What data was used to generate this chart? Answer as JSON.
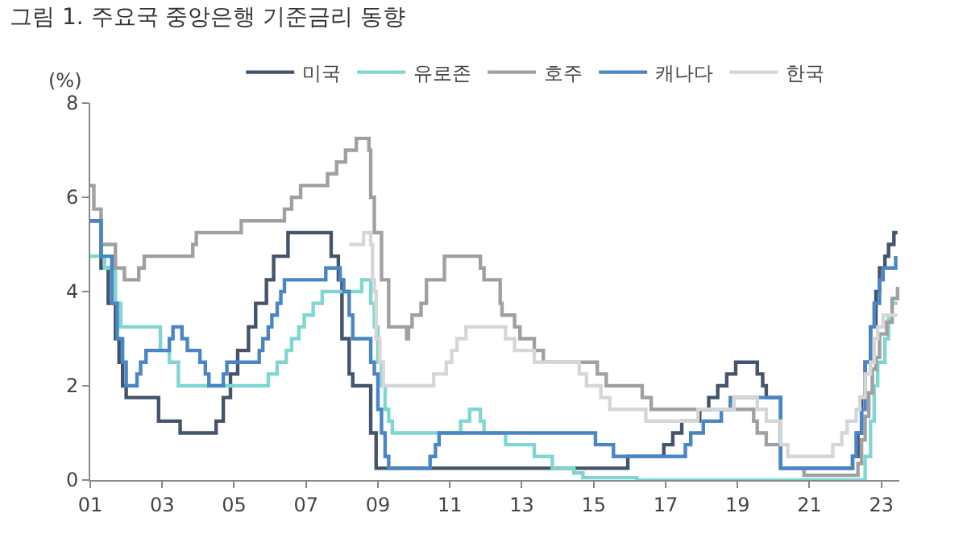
{
  "chart_data": {
    "type": "step",
    "title": "그림 1. 주요국 중앙은행 기준금리 동향",
    "ylabel": "(%)",
    "xlim": [
      2001,
      2023.5
    ],
    "xticks": [
      {
        "value": 2001,
        "label": "01"
      },
      {
        "value": 2003,
        "label": "03"
      },
      {
        "value": 2005,
        "label": "05"
      },
      {
        "value": 2007,
        "label": "07"
      },
      {
        "value": 2009,
        "label": "09"
      },
      {
        "value": 2011,
        "label": "11"
      },
      {
        "value": 2013,
        "label": "13"
      },
      {
        "value": 2015,
        "label": "15"
      },
      {
        "value": 2017,
        "label": "17"
      },
      {
        "value": 2019,
        "label": "19"
      },
      {
        "value": 2021,
        "label": "21"
      },
      {
        "value": 2023,
        "label": "23"
      }
    ],
    "ylim": [
      0,
      8
    ],
    "yticks": [
      0,
      2,
      4,
      6,
      8
    ],
    "grid": false,
    "legend": "top",
    "marker": "none",
    "line_style": "solid",
    "series": [
      {
        "name": "미국",
        "color": "#44546a",
        "x": [
          2001,
          2001.3,
          2001.5,
          2001.7,
          2001.8,
          2001.9,
          2002,
          2002.9,
          2003.5,
          2004.5,
          2004.7,
          2004.9,
          2005.1,
          2005.4,
          2005.6,
          2005.9,
          2006.1,
          2006.5,
          2007.7,
          2007.9,
          2008,
          2008.2,
          2008.3,
          2008.8,
          2008.95,
          2015.95,
          2016.95,
          2017.2,
          2017.45,
          2017.95,
          2018.2,
          2018.45,
          2018.7,
          2018.95,
          2019.55,
          2019.7,
          2019.8,
          2020.2,
          2022.2,
          2022.35,
          2022.45,
          2022.55,
          2022.7,
          2022.85,
          2022.95,
          2023.1,
          2023.2,
          2023.35,
          2023.45
        ],
        "values": [
          5.5,
          4.5,
          3.75,
          3,
          2.5,
          2,
          1.75,
          1.25,
          1,
          1.25,
          1.75,
          2.25,
          2.75,
          3.25,
          3.75,
          4.25,
          4.75,
          5.25,
          4.75,
          4.25,
          3,
          2.25,
          2,
          1,
          0.25,
          0.5,
          0.75,
          1,
          1.25,
          1.5,
          1.75,
          2,
          2.25,
          2.5,
          2.25,
          2,
          1.75,
          0.25,
          0.5,
          1,
          1.75,
          2.5,
          3.25,
          4,
          4.5,
          4.75,
          5,
          5.25,
          5.25
        ]
      },
      {
        "name": "유로존",
        "color": "#7fd6d2",
        "x": [
          2001,
          2001.4,
          2001.7,
          2001.85,
          2002.95,
          2003.2,
          2003.45,
          2005.95,
          2006.2,
          2006.45,
          2006.6,
          2006.8,
          2006.95,
          2007.2,
          2007.45,
          2008.55,
          2008.8,
          2008.9,
          2009,
          2009.1,
          2009.2,
          2009.3,
          2009.4,
          2011.3,
          2011.55,
          2011.85,
          2011.95,
          2012.55,
          2013.35,
          2013.85,
          2014.45,
          2014.7,
          2016.2,
          2022.55,
          2022.7,
          2022.8,
          2022.9,
          2023.1,
          2023.2,
          2023.3,
          2023.45
        ],
        "values": [
          4.75,
          4.5,
          3.75,
          3.25,
          2.75,
          2.5,
          2,
          2.25,
          2.5,
          2.75,
          3,
          3.25,
          3.5,
          3.75,
          4,
          4.25,
          3.75,
          3.25,
          2.5,
          2,
          1.5,
          1.25,
          1,
          1.25,
          1.5,
          1.25,
          1,
          0.75,
          0.5,
          0.25,
          0.15,
          0.05,
          0,
          0.5,
          1.25,
          2,
          2.5,
          3,
          3.5,
          3.75,
          3.75
        ]
      },
      {
        "name": "호주",
        "color": "#a0a0a0",
        "x": [
          2001,
          2001.1,
          2001.3,
          2001.7,
          2001.95,
          2002.35,
          2002.5,
          2003.85,
          2003.95,
          2005.2,
          2006.4,
          2006.6,
          2006.85,
          2007.6,
          2007.85,
          2008.1,
          2008.4,
          2008.75,
          2008.8,
          2008.9,
          2009.1,
          2009.3,
          2009.8,
          2009.85,
          2009.95,
          2010.2,
          2010.35,
          2010.85,
          2011.85,
          2011.95,
          2012.4,
          2012.45,
          2012.8,
          2012.95,
          2013.35,
          2013.6,
          2015.1,
          2015.35,
          2016.35,
          2016.6,
          2019.45,
          2019.55,
          2019.8,
          2020.2,
          2020.85,
          2022.35,
          2022.45,
          2022.55,
          2022.65,
          2022.75,
          2022.85,
          2022.95,
          2023.15,
          2023.3,
          2023.45
        ],
        "values": [
          6.25,
          5.75,
          5,
          4.5,
          4.25,
          4.5,
          4.75,
          5,
          5.25,
          5.5,
          5.75,
          6,
          6.25,
          6.5,
          6.75,
          7,
          7.25,
          7,
          6,
          5.25,
          4.25,
          3.25,
          3,
          3.25,
          3.5,
          3.75,
          4.25,
          4.75,
          4.5,
          4.25,
          3.75,
          3.5,
          3.25,
          3,
          2.75,
          2.5,
          2.25,
          2,
          1.75,
          1.5,
          1.25,
          1,
          0.75,
          0.25,
          0.1,
          0.35,
          0.85,
          1.35,
          1.85,
          2.35,
          2.6,
          3.1,
          3.35,
          3.85,
          4.1
        ]
      },
      {
        "name": "캐나다",
        "color": "#4a86c5",
        "x": [
          2001,
          2001.3,
          2001.6,
          2001.75,
          2001.9,
          2002,
          2002.3,
          2002.4,
          2002.55,
          2003.2,
          2003.3,
          2003.55,
          2003.7,
          2004.05,
          2004.2,
          2004.3,
          2004.7,
          2004.8,
          2005.7,
          2005.8,
          2005.95,
          2006.05,
          2006.2,
          2006.3,
          2006.4,
          2007.55,
          2007.95,
          2008.05,
          2008.2,
          2008.3,
          2008.8,
          2008.9,
          2009,
          2009.1,
          2009.2,
          2009.3,
          2010.45,
          2010.6,
          2010.7,
          2015.05,
          2015.55,
          2017.55,
          2017.7,
          2018.05,
          2018.55,
          2018.8,
          2020.2,
          2022.2,
          2022.3,
          2022.45,
          2022.55,
          2022.7,
          2022.8,
          2022.95,
          2023.05,
          2023.4
        ],
        "values": [
          5.5,
          4.75,
          3.75,
          3,
          2.5,
          2,
          2.25,
          2.5,
          2.75,
          3,
          3.25,
          3,
          2.75,
          2.5,
          2.25,
          2,
          2.25,
          2.5,
          2.75,
          3,
          3.25,
          3.5,
          3.75,
          4,
          4.25,
          4.5,
          4.25,
          4,
          3.5,
          3,
          2.5,
          2.25,
          1.5,
          1,
          0.5,
          0.25,
          0.5,
          0.75,
          1,
          0.75,
          0.5,
          0.75,
          1,
          1.25,
          1.5,
          1.75,
          0.25,
          0.5,
          1,
          1.5,
          2.5,
          3.25,
          3.75,
          4.25,
          4.5,
          4.75
        ]
      },
      {
        "name": "한국",
        "color": "#d6d6d6",
        "x": [
          2008.2,
          2008.6,
          2008.8,
          2008.85,
          2008.9,
          2008.95,
          2009.05,
          2009.15,
          2010.55,
          2010.9,
          2011.05,
          2011.2,
          2011.45,
          2012.55,
          2012.8,
          2013.35,
          2014.6,
          2014.8,
          2015.2,
          2015.45,
          2016.45,
          2017.9,
          2018.9,
          2019.55,
          2019.8,
          2020.2,
          2020.4,
          2021.65,
          2021.9,
          2022.05,
          2022.3,
          2022.4,
          2022.55,
          2022.7,
          2022.8,
          2022.9,
          2023.05,
          2023.45
        ],
        "values": [
          5,
          5.25,
          5,
          4.25,
          4,
          3,
          2.5,
          2,
          2.25,
          2.5,
          2.75,
          3,
          3.25,
          3,
          2.75,
          2.5,
          2.25,
          2,
          1.75,
          1.5,
          1.25,
          1.5,
          1.75,
          1.5,
          1.25,
          0.75,
          0.5,
          0.75,
          1,
          1.25,
          1.5,
          1.75,
          2.25,
          2.5,
          3,
          3.25,
          3.5,
          3.5
        ]
      }
    ]
  }
}
